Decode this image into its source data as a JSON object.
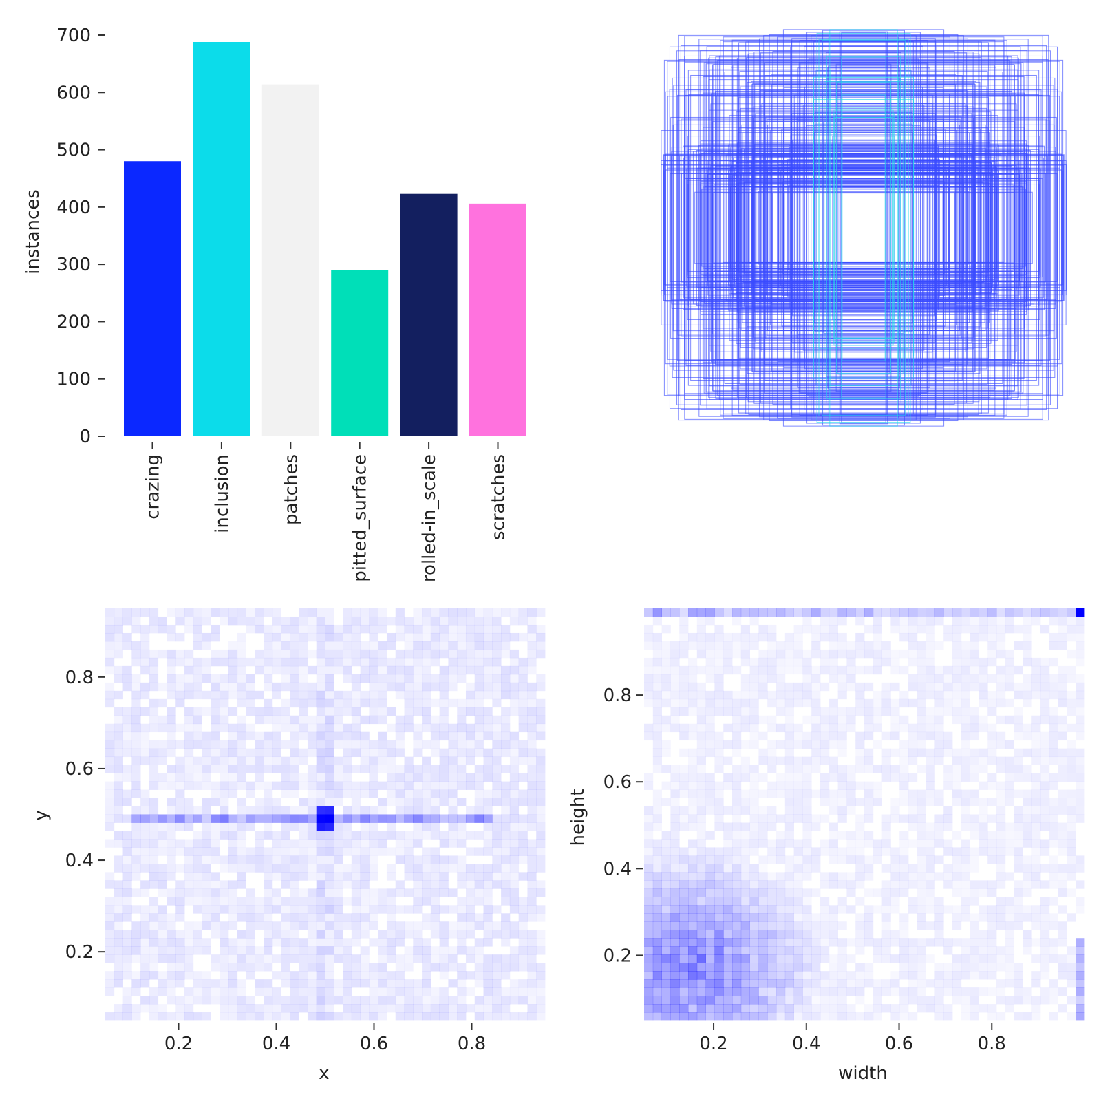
{
  "charts": {
    "bar": {
      "ylabel": "instances",
      "yticks": [
        "0",
        "100",
        "200",
        "300",
        "400",
        "500",
        "600",
        "700"
      ]
    },
    "boxes": {},
    "xy": {
      "xlabel": "x",
      "ylabel": "y",
      "xticks": [
        "0.2",
        "0.4",
        "0.6",
        "0.8"
      ],
      "yticks": [
        "0.2",
        "0.4",
        "0.6",
        "0.8"
      ]
    },
    "wh": {
      "xlabel": "width",
      "ylabel": "height",
      "xticks": [
        "0.2",
        "0.4",
        "0.6",
        "0.8"
      ],
      "yticks": [
        "0.2",
        "0.4",
        "0.6",
        "0.8"
      ]
    }
  },
  "chart_data": [
    {
      "type": "bar",
      "categories": [
        "crazing",
        "inclusion",
        "patches",
        "pitted_surface",
        "rolled-in_scale",
        "scratches"
      ],
      "values": [
        480,
        688,
        614,
        290,
        423,
        406
      ],
      "colors": [
        "#0b28ff",
        "#0cdcea",
        "#f2f2f2",
        "#00dfb8",
        "#131f5f",
        "#ff72de"
      ],
      "xlabel": "",
      "ylabel": "instances",
      "ylim": [
        0,
        700
      ],
      "yticks": [
        0,
        100,
        200,
        300,
        400,
        500,
        600,
        700
      ]
    },
    {
      "type": "scatter",
      "description_kind": "overlaid label bounding boxes (centered)",
      "xlim": [
        0,
        1
      ],
      "ylim": [
        0,
        1
      ],
      "color_primary": "#0b28ff",
      "color_secondary": "#0cdcea"
    },
    {
      "type": "heatmap",
      "xlabel": "x",
      "ylabel": "y",
      "xlim": [
        0.05,
        0.95
      ],
      "ylim": [
        0.05,
        0.95
      ],
      "xticks": [
        0.2,
        0.4,
        0.6,
        0.8
      ],
      "yticks": [
        0.2,
        0.4,
        0.6,
        0.8
      ],
      "peak": {
        "x": 0.5,
        "y": 0.5
      },
      "color": "#0000ff"
    },
    {
      "type": "heatmap",
      "xlabel": "width",
      "ylabel": "height",
      "xlim": [
        0.05,
        1.0
      ],
      "ylim": [
        0.05,
        1.0
      ],
      "xticks": [
        0.2,
        0.4,
        0.6,
        0.8
      ],
      "yticks": [
        0.2,
        0.4,
        0.6,
        0.8
      ],
      "peak": {
        "x": 1.0,
        "y": 1.0
      },
      "color": "#0000ff"
    }
  ]
}
